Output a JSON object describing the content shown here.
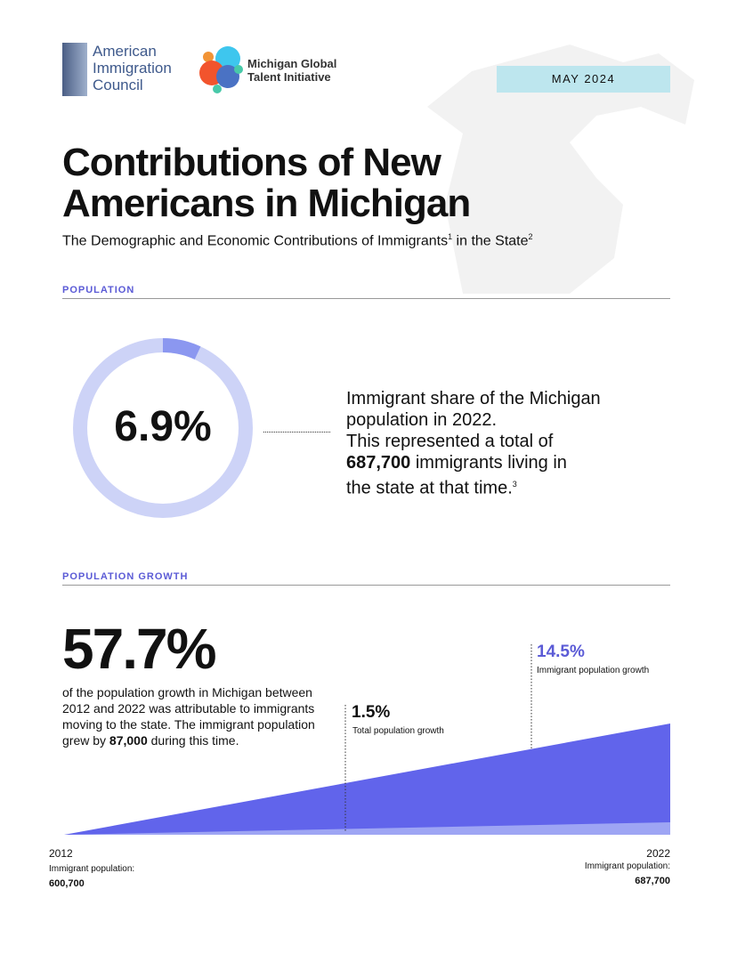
{
  "logos": {
    "aic": "American Immigration Council",
    "mgti": "Michigan Global Talent Initiative"
  },
  "date": "MAY 2024",
  "title_line1": "Contributions of New",
  "title_line2": "Americans in Michigan",
  "subtitle": {
    "text": "The Demographic and Economic Contributions of Immigrants",
    "sup1": "1",
    "text2": " in the State",
    "sup2": "2"
  },
  "population": {
    "section": "POPULATION",
    "share": "6.9%",
    "share_value": 6.9,
    "line1": "Immigrant share of the Michigan",
    "line2": "population in 2022.",
    "line3": "This represented a total of",
    "count": "687,700",
    "line4": " immigrants living in",
    "line5": "the state at that time.",
    "sup": "3"
  },
  "growth": {
    "section": "POPULATION GROWTH",
    "share": "57.7%",
    "desc": "of the population growth in Michigan between 2012 and 2022 was attributable to immigrants moving to the state. The immigrant population grew by ",
    "amount": "87,000",
    "desc_end": " during this time.",
    "total_value": "1.5%",
    "total_label": "Total population growth",
    "imm_value": "14.5%",
    "imm_label": "Immigrant population growth",
    "start_year": "2012",
    "start_label": "Immigrant population:",
    "start_value": "600,700",
    "end_year": "2022",
    "end_label": "Immigrant population:",
    "end_value": "687,700"
  },
  "colors": {
    "accent": "#5b5bd6",
    "area": "#6164eb",
    "area_light": "#9ea5f4",
    "donut_bg": "#cdd3f7",
    "donut_fill": "#8b97f0",
    "date_bg": "#bde6ee"
  }
}
